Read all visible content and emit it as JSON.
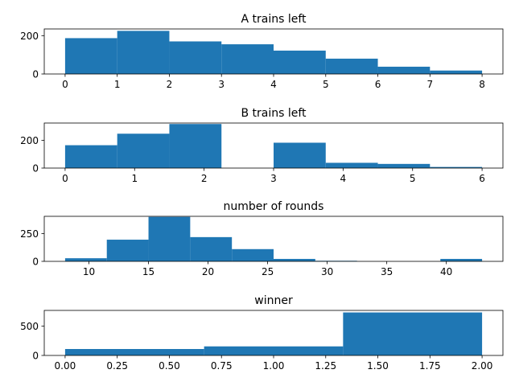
{
  "chart_data": [
    {
      "type": "bar",
      "title": "A trains left",
      "xlabel": "",
      "ylabel": "",
      "xlim": [
        -0.4,
        8.4
      ],
      "ylim": [
        0,
        235
      ],
      "bin_edges": [
        0,
        1,
        2,
        3,
        4,
        5,
        6,
        7,
        8
      ],
      "values": [
        187,
        225,
        170,
        155,
        122,
        80,
        38,
        18
      ],
      "xticks": [
        0,
        1,
        2,
        3,
        4,
        5,
        6,
        7,
        8
      ],
      "xtick_labels": [
        "0",
        "1",
        "2",
        "3",
        "4",
        "5",
        "6",
        "7",
        "8"
      ],
      "yticks": [
        0,
        200
      ],
      "ytick_labels": [
        "0",
        "200"
      ]
    },
    {
      "type": "bar",
      "title": "B trains left",
      "xlabel": "",
      "ylabel": "",
      "xlim": [
        -0.3,
        6.3
      ],
      "ylim": [
        0,
        325
      ],
      "bin_edges": [
        0,
        0.75,
        1.5,
        2.25,
        3,
        3.75,
        4.5,
        5.25,
        6
      ],
      "values": [
        165,
        248,
        318,
        0,
        183,
        38,
        30,
        8
      ],
      "xticks": [
        0,
        1,
        2,
        3,
        4,
        5,
        6
      ],
      "xtick_labels": [
        "0",
        "1",
        "2",
        "3",
        "4",
        "5",
        "6"
      ],
      "yticks": [
        0,
        200
      ],
      "ytick_labels": [
        "0",
        "200"
      ]
    },
    {
      "type": "bar",
      "title": "number of rounds",
      "xlabel": "",
      "ylabel": "",
      "xlim": [
        6.25,
        44.75
      ],
      "ylim": [
        0,
        405
      ],
      "bin_edges": [
        8,
        11.5,
        15,
        18.5,
        22,
        25.5,
        29,
        32.5,
        36,
        39.5,
        43
      ],
      "values": [
        28,
        195,
        400,
        218,
        110,
        22,
        5,
        0,
        0,
        22
      ],
      "xticks": [
        10,
        15,
        20,
        25,
        30,
        35,
        40
      ],
      "xtick_labels": [
        "10",
        "15",
        "20",
        "25",
        "30",
        "35",
        "40"
      ],
      "yticks": [
        0,
        250
      ],
      "ytick_labels": [
        "0",
        "250"
      ]
    },
    {
      "type": "bar",
      "title": "winner",
      "xlabel": "",
      "ylabel": "",
      "xlim": [
        -0.1,
        2.1
      ],
      "ylim": [
        0,
        770
      ],
      "bin_edges": [
        0,
        0.6667,
        1.3333,
        2
      ],
      "values": [
        110,
        155,
        735
      ],
      "xticks": [
        0,
        0.25,
        0.5,
        0.75,
        1,
        1.25,
        1.5,
        1.75,
        2
      ],
      "xtick_labels": [
        "0.00",
        "0.25",
        "0.50",
        "0.75",
        "1.00",
        "1.25",
        "1.50",
        "1.75",
        "2.00"
      ],
      "yticks": [
        0,
        500
      ],
      "ytick_labels": [
        "0",
        "500"
      ]
    }
  ],
  "colors": {
    "bar": "#1f77b4",
    "axes": "#000000",
    "background": "#ffffff"
  }
}
